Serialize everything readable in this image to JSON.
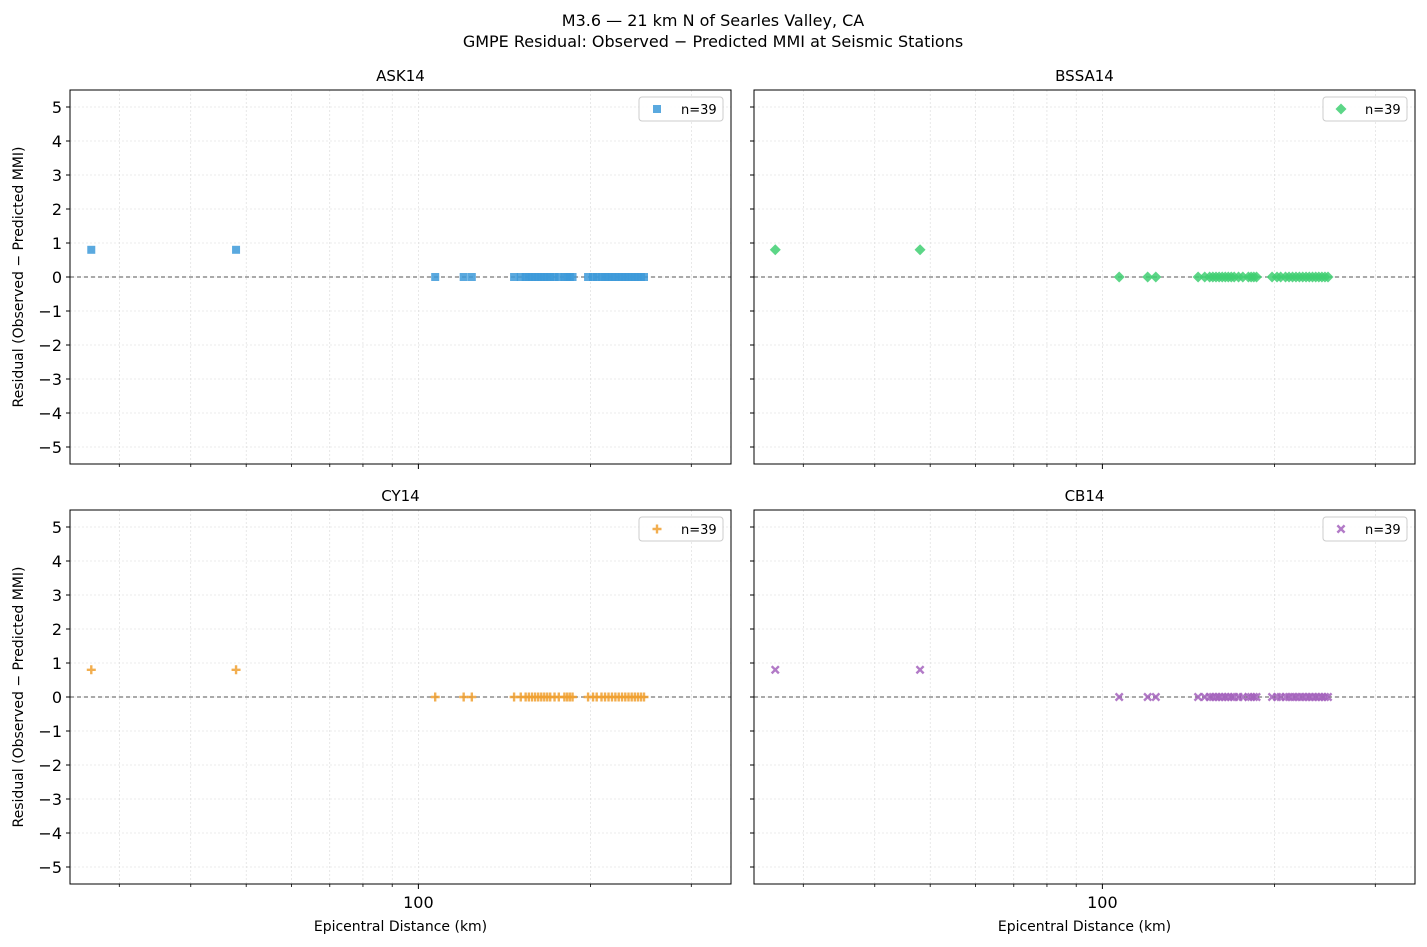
{
  "figure": {
    "title_line1": "M3.6 — 21 km N of Searles Valley, CA",
    "title_line2": "GMPE Residual: Observed − Predicted MMI at Seismic Stations"
  },
  "shared": {
    "xscale": "log",
    "xlim": [
      24.6,
      352
    ],
    "ylim": [
      -5.5,
      5.5
    ],
    "yticks": [
      5,
      4,
      3,
      2,
      1,
      0,
      -1,
      -2,
      -3,
      -4,
      -5
    ],
    "ytick_labels": [
      "5",
      "4",
      "3",
      "2",
      "1",
      "0",
      "−1",
      "−2",
      "−3",
      "−4",
      "−5"
    ],
    "xtick_major": [
      100
    ],
    "xtick_major_label": "100",
    "xtick_minor": [
      30,
      40,
      50,
      60,
      70,
      80,
      90,
      200,
      300
    ],
    "ylabel": "Residual (Observed − Predicted MMI)",
    "xlabel": "Epicentral Distance (km)",
    "zero_line": 0,
    "grid": true,
    "legend_position": "top-right",
    "x": [
      26.8,
      48.0,
      107,
      120,
      124,
      147,
      151,
      154,
      156,
      158,
      160,
      162,
      164,
      166,
      168,
      170,
      173,
      176,
      180,
      182,
      184,
      186,
      198,
      202,
      205,
      209,
      212,
      215,
      218,
      221,
      224,
      227,
      230,
      233,
      236,
      239,
      242,
      245,
      248
    ],
    "y": [
      0.8,
      0.8,
      0,
      0,
      0,
      0,
      0,
      0,
      0,
      0,
      0,
      0,
      0,
      0,
      0,
      0,
      0,
      0,
      0,
      0,
      0,
      0,
      0,
      0,
      0,
      0,
      0,
      0,
      0,
      0,
      0,
      0,
      0,
      0,
      0,
      0,
      0,
      0,
      0
    ]
  },
  "chart_data": [
    {
      "type": "scatter",
      "title": "ASK14",
      "marker": "square",
      "color": "#3d9ad9",
      "legend": "n=39"
    },
    {
      "type": "scatter",
      "title": "BSSA14",
      "marker": "diamond",
      "color": "#3fcf72",
      "legend": "n=39"
    },
    {
      "type": "scatter",
      "title": "CY14",
      "marker": "plus",
      "color": "#f0a030",
      "legend": "n=39"
    },
    {
      "type": "scatter",
      "title": "CB14",
      "marker": "x",
      "color": "#a463bd",
      "legend": "n=39"
    }
  ]
}
